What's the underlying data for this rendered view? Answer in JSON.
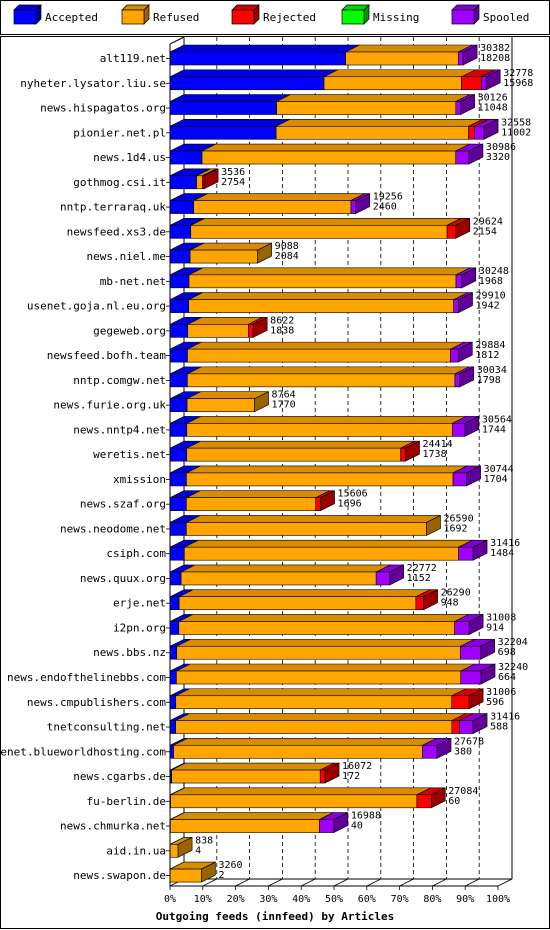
{
  "chart_data": {
    "type": "bar",
    "orientation": "horizontal",
    "stacked": true,
    "style": "3d",
    "xlabel": "Outgoing feeds (innfeed) by Articles",
    "xticks": [
      "0%",
      "10%",
      "20%",
      "30%",
      "40%",
      "50%",
      "60%",
      "70%",
      "80%",
      "90%",
      "100%"
    ],
    "xlim": [
      0,
      100
    ],
    "grid": true,
    "legend_position": "top",
    "legend": [
      {
        "name": "Accepted",
        "color": "#0000ff"
      },
      {
        "name": "Refused",
        "color": "#ffa500"
      },
      {
        "name": "Rejected",
        "color": "#ff0000"
      },
      {
        "name": "Missing",
        "color": "#00ff00"
      },
      {
        "name": "Spooled",
        "color": "#a000ff"
      }
    ],
    "rows": [
      {
        "name": "alt119.net",
        "total": 30382,
        "accepted": 18208,
        "segments": [
          18208,
          11674,
          0,
          0,
          500
        ]
      },
      {
        "name": "nyheter.lysator.liu.se",
        "total": 32778,
        "accepted": 15968,
        "segments": [
          15968,
          14250,
          2060,
          0,
          500
        ]
      },
      {
        "name": "news.hispagatos.org",
        "total": 30126,
        "accepted": 11048,
        "segments": [
          11048,
          18578,
          0,
          0,
          500
        ]
      },
      {
        "name": "pionier.net.pl",
        "total": 32558,
        "accepted": 11002,
        "segments": [
          11002,
          19952,
          600,
          0,
          1004
        ]
      },
      {
        "name": "news.1d4.us",
        "total": 30986,
        "accepted": 3320,
        "segments": [
          3320,
          26300,
          0,
          0,
          1366
        ]
      },
      {
        "name": "gothmog.csi.it",
        "total": 3536,
        "accepted": 2754,
        "segments": [
          2754,
          600,
          182,
          0,
          0
        ]
      },
      {
        "name": "nntp.terraraq.uk",
        "total": 19256,
        "accepted": 2460,
        "segments": [
          2460,
          16300,
          0,
          0,
          496
        ]
      },
      {
        "name": "newsfeed.xs3.de",
        "total": 29624,
        "accepted": 2154,
        "segments": [
          2154,
          26570,
          900,
          0,
          0
        ]
      },
      {
        "name": "news.niel.me",
        "total": 9088,
        "accepted": 2084,
        "segments": [
          2084,
          7004,
          0,
          0,
          0
        ]
      },
      {
        "name": "mb-net.net",
        "total": 30248,
        "accepted": 1968,
        "segments": [
          1968,
          27680,
          0,
          0,
          600
        ]
      },
      {
        "name": "usenet.goja.nl.eu.org",
        "total": 29910,
        "accepted": 1942,
        "segments": [
          1942,
          27468,
          0,
          0,
          500
        ]
      },
      {
        "name": "gegeweb.org",
        "total": 8622,
        "accepted": 1838,
        "segments": [
          1838,
          6284,
          500,
          0,
          0
        ]
      },
      {
        "name": "newsfeed.bofh.team",
        "total": 29884,
        "accepted": 1812,
        "segments": [
          1812,
          27272,
          0,
          0,
          800
        ]
      },
      {
        "name": "nntp.comgw.net",
        "total": 30034,
        "accepted": 1798,
        "segments": [
          1798,
          27736,
          0,
          0,
          500
        ]
      },
      {
        "name": "news.furie.org.uk",
        "total": 8764,
        "accepted": 1770,
        "segments": [
          1770,
          6994,
          0,
          0,
          0
        ]
      },
      {
        "name": "news.nntp4.net",
        "total": 30564,
        "accepted": 1744,
        "segments": [
          1744,
          27520,
          0,
          0,
          1300
        ]
      },
      {
        "name": "weretis.net",
        "total": 24414,
        "accepted": 1738,
        "segments": [
          1738,
          22176,
          500,
          0,
          0
        ]
      },
      {
        "name": "xmission",
        "total": 30744,
        "accepted": 1704,
        "segments": [
          1704,
          27640,
          0,
          0,
          1400
        ]
      },
      {
        "name": "news.szaf.org",
        "total": 15606,
        "accepted": 1696,
        "segments": [
          1696,
          13410,
          500,
          0,
          0
        ]
      },
      {
        "name": "news.neodome.net",
        "total": 26590,
        "accepted": 1692,
        "segments": [
          1692,
          24898,
          0,
          0,
          0
        ]
      },
      {
        "name": "csiph.com",
        "total": 31416,
        "accepted": 1484,
        "segments": [
          1484,
          28432,
          0,
          0,
          1500
        ]
      },
      {
        "name": "news.quux.org",
        "total": 22772,
        "accepted": 1152,
        "segments": [
          1152,
          20220,
          0,
          0,
          1400
        ]
      },
      {
        "name": "erje.net",
        "total": 26290,
        "accepted": 948,
        "segments": [
          948,
          24542,
          800,
          0,
          0
        ]
      },
      {
        "name": "i2pn.org",
        "total": 31008,
        "accepted": 914,
        "segments": [
          914,
          28594,
          0,
          0,
          1500
        ]
      },
      {
        "name": "news.bbs.nz",
        "total": 32204,
        "accepted": 698,
        "segments": [
          698,
          29406,
          0,
          0,
          2100
        ]
      },
      {
        "name": "news.endofthelinebbs.com",
        "total": 32240,
        "accepted": 664,
        "segments": [
          664,
          29476,
          0,
          0,
          2100
        ]
      },
      {
        "name": "news.cmpublishers.com",
        "total": 31006,
        "accepted": 596,
        "segments": [
          596,
          28610,
          1800,
          0,
          0
        ]
      },
      {
        "name": "tnetconsulting.net",
        "total": 31416,
        "accepted": 588,
        "segments": [
          588,
          28628,
          800,
          0,
          1400
        ]
      },
      {
        "name": "usenet.blueworldhosting.com",
        "total": 27678,
        "accepted": 380,
        "segments": [
          380,
          25798,
          0,
          0,
          1500
        ]
      },
      {
        "name": "news.cgarbs.de",
        "total": 16072,
        "accepted": 172,
        "segments": [
          172,
          15400,
          500,
          0,
          0
        ]
      },
      {
        "name": "fu-berlin.de",
        "total": 27084,
        "accepted": 60,
        "segments": [
          60,
          25524,
          1500,
          0,
          0
        ]
      },
      {
        "name": "news.chmurka.net",
        "total": 16988,
        "accepted": 40,
        "segments": [
          40,
          15448,
          0,
          0,
          1500
        ]
      },
      {
        "name": "aid.in.ua",
        "total": 838,
        "accepted": 4,
        "segments": [
          4,
          834,
          0,
          0,
          0
        ]
      },
      {
        "name": "news.swapon.de",
        "total": 3260,
        "accepted": 2,
        "segments": [
          2,
          3258,
          0,
          0,
          0
        ]
      }
    ]
  }
}
